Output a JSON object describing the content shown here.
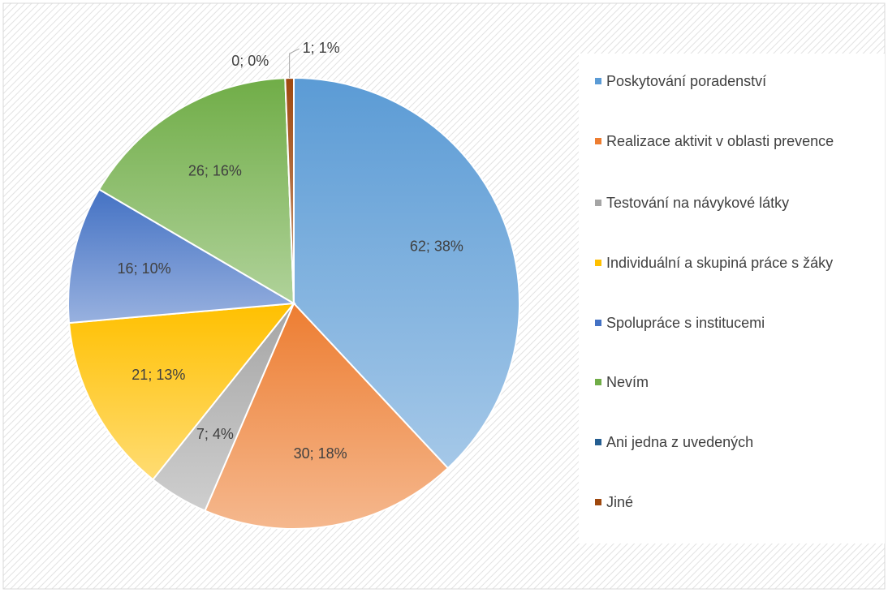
{
  "chart_data": {
    "type": "pie",
    "categories": [
      "Poskytování poradenství",
      "Realizace aktivit v oblasti prevence",
      "Testování na návykové látky",
      "Individuální a skupiná práce s žáky",
      "Spolupráce s institucemi",
      "Nevím",
      "Ani jedna z  uvedených",
      "Jiné"
    ],
    "values": [
      62,
      30,
      7,
      21,
      16,
      26,
      0,
      1
    ],
    "value_labels": [
      "62; 38%",
      "30; 18%",
      "7; 4%",
      "21; 13%",
      "16; 10%",
      "26; 16%",
      "0; 0%",
      "1; 1%"
    ],
    "colors": [
      "#5b9bd5",
      "#ed7d31",
      "#a5a5a5",
      "#ffc000",
      "#4472c4",
      "#70ad47",
      "#255e91",
      "#9e480e"
    ],
    "legend": "right"
  }
}
